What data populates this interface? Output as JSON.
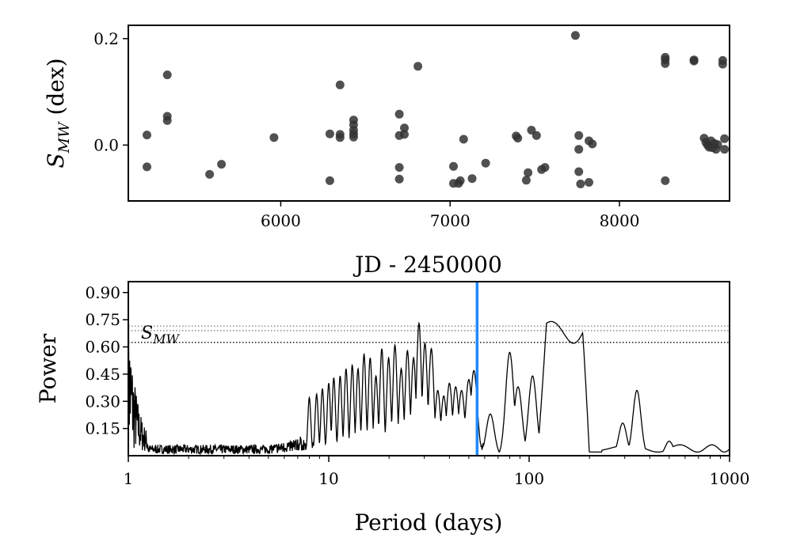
{
  "chart_data": [
    {
      "type": "scatter",
      "xlabel": "JD - 2450000",
      "ylabel": "S_MW (dex)",
      "ylabel_main": "S",
      "ylabel_sub": "MW",
      "ylabel_unit": " (dex)",
      "xlim": [
        5100,
        8650
      ],
      "ylim": [
        -0.105,
        0.225
      ],
      "xticks": [
        6000,
        7000,
        8000
      ],
      "xtick_labels": [
        "6000",
        "7000",
        "8000"
      ],
      "yticks": [
        0.2,
        0.0
      ],
      "ytick_labels": [
        "0.2",
        "0.0"
      ],
      "marker_color": "#333333",
      "points": [
        [
          5210,
          0.019
        ],
        [
          5210,
          -0.041
        ],
        [
          5330,
          0.132
        ],
        [
          5330,
          0.054
        ],
        [
          5330,
          0.046
        ],
        [
          5580,
          -0.055
        ],
        [
          5650,
          -0.036
        ],
        [
          5960,
          0.014
        ],
        [
          6290,
          0.021
        ],
        [
          6290,
          -0.067
        ],
        [
          6350,
          0.113
        ],
        [
          6350,
          0.02
        ],
        [
          6350,
          0.014
        ],
        [
          6430,
          0.047
        ],
        [
          6430,
          0.038
        ],
        [
          6430,
          0.028
        ],
        [
          6430,
          0.021
        ],
        [
          6430,
          0.015
        ],
        [
          6700,
          0.058
        ],
        [
          6700,
          0.018
        ],
        [
          6700,
          -0.042
        ],
        [
          6700,
          -0.064
        ],
        [
          6730,
          0.032
        ],
        [
          6730,
          0.02
        ],
        [
          6810,
          0.148
        ],
        [
          7020,
          -0.04
        ],
        [
          7020,
          -0.072
        ],
        [
          7050,
          -0.072
        ],
        [
          7060,
          -0.067
        ],
        [
          7080,
          0.011
        ],
        [
          7130,
          -0.063
        ],
        [
          7210,
          -0.034
        ],
        [
          7390,
          0.017
        ],
        [
          7400,
          0.013
        ],
        [
          7450,
          -0.066
        ],
        [
          7460,
          -0.052
        ],
        [
          7480,
          0.028
        ],
        [
          7510,
          0.018
        ],
        [
          7540,
          -0.046
        ],
        [
          7560,
          -0.042
        ],
        [
          7740,
          0.206
        ],
        [
          7760,
          0.018
        ],
        [
          7760,
          -0.008
        ],
        [
          7760,
          -0.05
        ],
        [
          7770,
          -0.073
        ],
        [
          7820,
          -0.07
        ],
        [
          7820,
          0.008
        ],
        [
          7840,
          0.002
        ],
        [
          8270,
          0.165
        ],
        [
          8270,
          0.16
        ],
        [
          8270,
          0.153
        ],
        [
          8270,
          -0.067
        ],
        [
          8440,
          0.16
        ],
        [
          8440,
          0.158
        ],
        [
          8500,
          0.013
        ],
        [
          8510,
          0.005
        ],
        [
          8520,
          0.0
        ],
        [
          8530,
          -0.004
        ],
        [
          8540,
          0.008
        ],
        [
          8550,
          -0.005
        ],
        [
          8560,
          0.003
        ],
        [
          8570,
          -0.008
        ],
        [
          8580,
          0.001
        ],
        [
          8610,
          0.159
        ],
        [
          8610,
          0.152
        ],
        [
          8620,
          0.012
        ],
        [
          8620,
          -0.008
        ]
      ]
    },
    {
      "type": "line",
      "xlabel": "Period (days)",
      "ylabel": "Power",
      "xscale": "log",
      "xlim": [
        1,
        1000
      ],
      "ylim": [
        0.0,
        0.96
      ],
      "xticks": [
        1,
        10,
        100,
        1000
      ],
      "xtick_labels": [
        "1",
        "10",
        "100",
        "1000"
      ],
      "yticks": [
        0.15,
        0.3,
        0.45,
        0.6,
        0.75,
        0.9
      ],
      "ytick_labels": [
        "0.15",
        "0.30",
        "0.45",
        "0.60",
        "0.75",
        "0.90"
      ],
      "line_color": "#000000",
      "vline": {
        "x": 55,
        "color": "#1e88ff"
      },
      "hlines": [
        {
          "y": 0.715,
          "style": "dotted",
          "color": "#888888"
        },
        {
          "y": 0.69,
          "style": "dotted",
          "color": "#888888"
        },
        {
          "y": 0.625,
          "style": "dotted",
          "color": "#000000"
        }
      ],
      "annotation": {
        "main": "S",
        "sub": "MW",
        "x": 1.05,
        "y": 0.64
      },
      "peaks": [
        [
          8.0,
          0.32
        ],
        [
          8.7,
          0.34
        ],
        [
          9.3,
          0.37
        ],
        [
          10.0,
          0.4
        ],
        [
          10.6,
          0.43
        ],
        [
          11.4,
          0.44
        ],
        [
          12.2,
          0.48
        ],
        [
          13.1,
          0.5
        ],
        [
          14.0,
          0.48
        ],
        [
          15.0,
          0.56
        ],
        [
          16.1,
          0.54
        ],
        [
          17.2,
          0.44
        ],
        [
          18.4,
          0.59
        ],
        [
          19.9,
          0.54
        ],
        [
          21.4,
          0.61
        ],
        [
          23.0,
          0.48
        ],
        [
          24.7,
          0.58
        ],
        [
          26.5,
          0.54
        ],
        [
          28.2,
          0.73
        ],
        [
          30.2,
          0.62
        ],
        [
          32.5,
          0.59
        ],
        [
          35.0,
          0.36
        ],
        [
          37.5,
          0.33
        ],
        [
          40.0,
          0.4
        ],
        [
          43.0,
          0.38
        ],
        [
          46.0,
          0.36
        ],
        [
          50.0,
          0.42
        ],
        [
          53.0,
          0.47
        ],
        [
          64.0,
          0.23
        ],
        [
          80.0,
          0.57
        ],
        [
          88.0,
          0.38
        ],
        [
          104.0,
          0.44
        ],
        [
          293.0,
          0.18
        ],
        [
          345.0,
          0.36
        ],
        [
          500.0,
          0.08
        ]
      ]
    }
  ]
}
